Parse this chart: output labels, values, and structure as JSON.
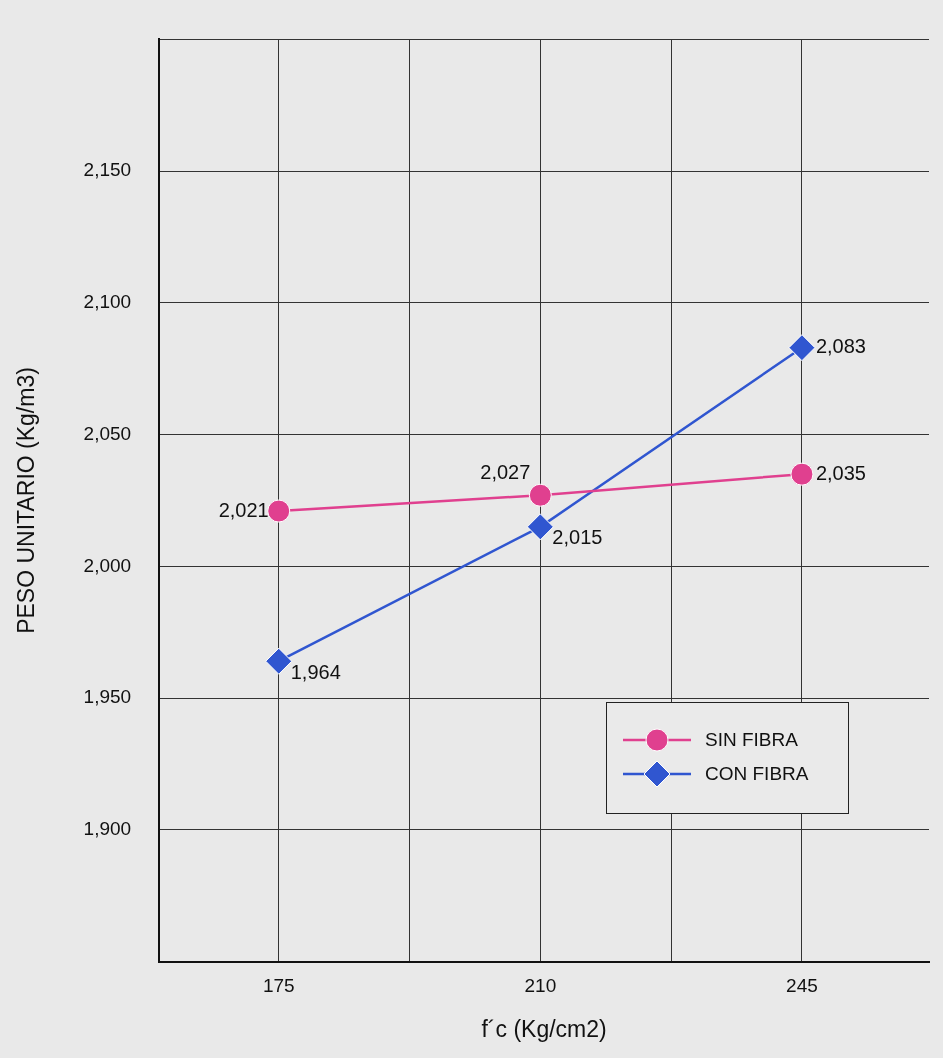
{
  "chart_data": {
    "type": "line",
    "xlabel": "f´c (Kg/cm2)",
    "ylabel": "PESO UNITARIO (Kg/m3)",
    "x": [
      175,
      210,
      245
    ],
    "xlim": [
      159,
      262
    ],
    "xticks": [
      175,
      {
        "value": 192.5,
        "label": null
      },
      210,
      {
        "value": 227.5,
        "label": null
      },
      245
    ],
    "ylim": [
      1850,
      2200
    ],
    "yticks": [
      {
        "value": 1850,
        "label": null
      },
      {
        "value": 1900,
        "label": "1,900"
      },
      {
        "value": 1950,
        "label": "1,950"
      },
      {
        "value": 2000,
        "label": "2,000"
      },
      {
        "value": 2050,
        "label": "2,050"
      },
      {
        "value": 2100,
        "label": "2,100"
      },
      {
        "value": 2150,
        "label": "2,150"
      },
      {
        "value": 2200,
        "label": null
      }
    ],
    "series": [
      {
        "name": "SIN FIBRA",
        "color": "#e0408f",
        "marker": "circle",
        "values": [
          2021,
          2027,
          2035
        ],
        "value_labels": [
          "2,021",
          "2,027",
          "2,035"
        ]
      },
      {
        "name": "CON FIBRA",
        "color": "#3056d0",
        "marker": "diamond",
        "values": [
          1964,
          2015,
          2083
        ],
        "value_labels": [
          "1,964",
          "2,015",
          "2,083"
        ]
      }
    ],
    "grid": true,
    "legend": "bottom right"
  }
}
